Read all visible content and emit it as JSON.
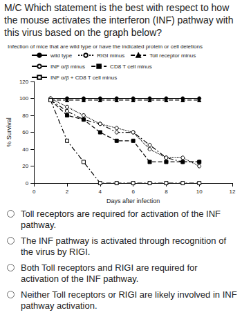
{
  "question": "M/C Which statement is the best with respect to how the mouse activates the interferon (INF) pathway with this virus based on the graph below?",
  "chart_data": {
    "type": "line",
    "title": "Infection of mice that are wild type or have the indicated protein or cell deletions",
    "x_label": "Days after infection",
    "y_label": "% Survival",
    "x": [
      1,
      2,
      3,
      4,
      5,
      6,
      7,
      8,
      9,
      10
    ],
    "series": [
      {
        "name": "wild type",
        "color": "#000000",
        "marker": "circle",
        "line_style": "solid",
        "values": [
          100,
          100,
          100,
          100,
          100,
          100,
          100,
          100,
          100,
          100
        ]
      },
      {
        "name": "RIGI minus",
        "color": "#000000",
        "marker": "open_circle",
        "line_style": "dotted",
        "values": [
          100,
          90,
          80,
          70,
          65,
          60,
          40,
          30,
          30,
          20
        ]
      },
      {
        "name": "Toll receptor minus",
        "color": "#000000",
        "marker": "triangle",
        "line_style": "dashed",
        "values": [
          98,
          98,
          98,
          98,
          98,
          98,
          98,
          98,
          98,
          98
        ]
      },
      {
        "name": "INF α/β minus",
        "color": "#000000",
        "marker": "open_circle",
        "line_style": "dashdot",
        "values": [
          98,
          85,
          75,
          70,
          60,
          60,
          45,
          30,
          25,
          25
        ]
      },
      {
        "name": "CD8 T cell minus",
        "color": "#000000",
        "marker": "square",
        "line_style": "dashed",
        "values": [
          98,
          80,
          75,
          60,
          50,
          50,
          25,
          25,
          25,
          25
        ]
      },
      {
        "name": "INF α/β + CD8 T cell minus",
        "color": "#000000",
        "marker": "open_square",
        "line_style": "dashdot",
        "values": [
          98,
          50,
          25,
          0,
          0,
          0,
          0,
          0,
          0,
          0
        ]
      }
    ],
    "xlim": [
      0,
      12
    ],
    "xticks": [
      0,
      2,
      4,
      6,
      8,
      10,
      12
    ],
    "ylim": [
      0,
      120
    ],
    "yticks": [
      0,
      20,
      40,
      60,
      80,
      100,
      120
    ],
    "grid": false,
    "legend": "top"
  },
  "options": [
    "Toll receptors are required for activation of the INF pathway.",
    "The INF pathway is activated through recognition of the virus by RIGI.",
    "Both Toll receptors and RIGI are required for activation of the INF pathway.",
    "Neither Toll receptors or RIGI are likely involved in INF pathway activation."
  ]
}
